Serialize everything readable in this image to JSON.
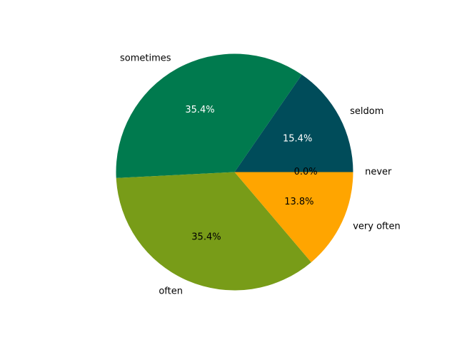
{
  "chart_data": {
    "type": "pie",
    "title": "",
    "start_angle_deg": 0,
    "direction": "counterclockwise",
    "slices": [
      {
        "label": "never",
        "value": 0.0,
        "percent_label": "0.0%",
        "color": "#feff00",
        "pct_text_color": "#000000"
      },
      {
        "label": "seldom",
        "value": 15.4,
        "percent_label": "15.4%",
        "color": "#004c5a",
        "pct_text_color": "#ffffff"
      },
      {
        "label": "sometimes",
        "value": 35.4,
        "percent_label": "35.4%",
        "color": "#007a4e",
        "pct_text_color": "#ffffff"
      },
      {
        "label": "often",
        "value": 35.4,
        "percent_label": "35.4%",
        "color": "#789c18",
        "pct_text_color": "#000000"
      },
      {
        "label": "very often",
        "value": 13.8,
        "percent_label": "13.8%",
        "color": "#ffa500",
        "pct_text_color": "#000000"
      }
    ]
  }
}
